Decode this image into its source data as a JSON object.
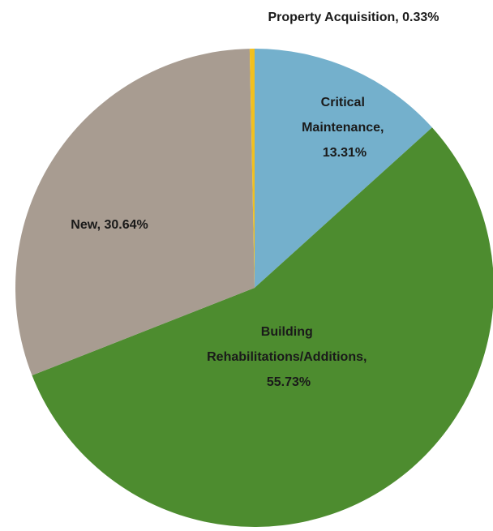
{
  "chart_data": {
    "type": "pie",
    "categories": [
      "Critical Maintenance",
      "Building Rehabilitations/Additions",
      "New",
      "Property Acquisition"
    ],
    "values": [
      13.31,
      55.73,
      30.64,
      0.33
    ],
    "value_labels": [
      "Critical Maintenance, 13.31%",
      "Building Rehabilitations/Additions, 55.73%",
      "New, 30.64%",
      "Property Acquisition, 0.33%"
    ],
    "colors": [
      "#74b0cc",
      "#4d8c2f",
      "#a89c91",
      "#f2c01e"
    ]
  }
}
